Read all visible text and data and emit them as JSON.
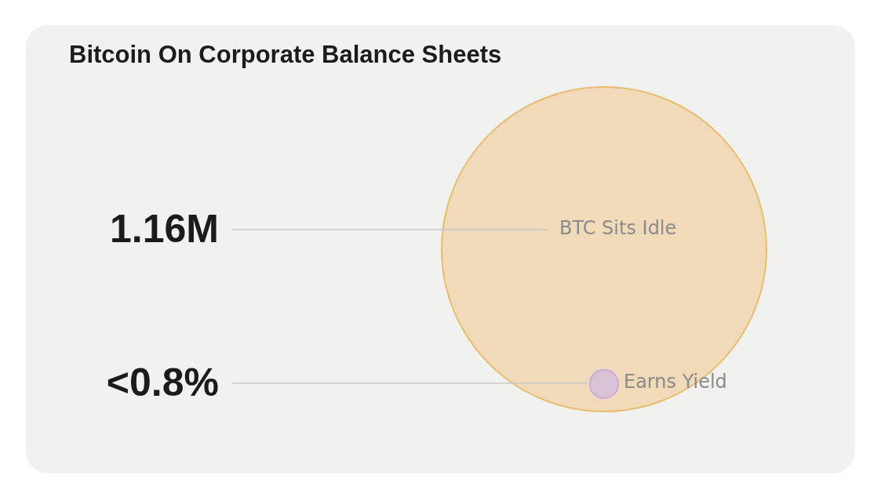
{
  "chart_data": {
    "type": "other",
    "title": "Bitcoin On Corporate Balance Sheets",
    "categories": [
      "BTC Sits Idle",
      "Earns Yield"
    ],
    "values": [
      1160000,
      0.8
    ],
    "value_labels": [
      "1.16M",
      "<0.8%"
    ],
    "colors": [
      "#f0d9b5",
      "#d9c2d6"
    ]
  }
}
